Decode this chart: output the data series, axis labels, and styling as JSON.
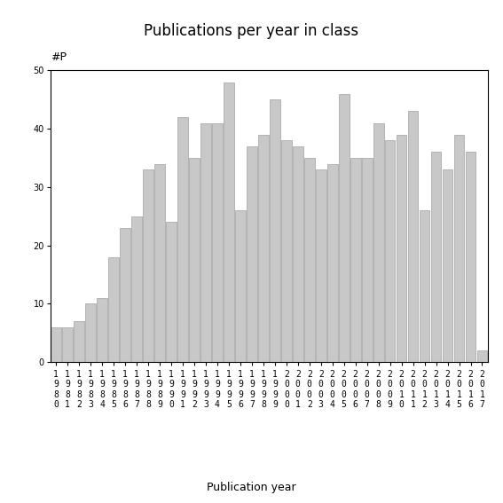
{
  "title": "Publications per year in class",
  "xlabel": "Publication year",
  "ylabel": "#P",
  "bar_color": "#c8c8c8",
  "bar_edgecolor": "#a0a0a0",
  "years": [
    1980,
    1981,
    1982,
    1983,
    1984,
    1985,
    1986,
    1987,
    1988,
    1989,
    1990,
    1991,
    1992,
    1993,
    1994,
    1995,
    1996,
    1997,
    1998,
    1999,
    2000,
    2001,
    2002,
    2003,
    2004,
    2005,
    2006,
    2007,
    2008,
    2009,
    2010,
    2011,
    2012,
    2013,
    2014,
    2015,
    2016,
    2017
  ],
  "values": [
    6,
    6,
    7,
    10,
    11,
    18,
    23,
    25,
    33,
    34,
    24,
    42,
    35,
    41,
    41,
    48,
    26,
    37,
    39,
    45,
    38,
    37,
    35,
    33,
    34,
    46,
    35,
    35,
    41,
    38,
    39,
    43,
    26,
    36,
    33,
    39,
    36,
    2
  ],
  "ylim": [
    0,
    50
  ],
  "yticks": [
    0,
    10,
    20,
    30,
    40,
    50
  ],
  "background_color": "#ffffff",
  "title_fontsize": 12,
  "label_fontsize": 9,
  "tick_fontsize": 7,
  "ylabel_fontsize": 9
}
